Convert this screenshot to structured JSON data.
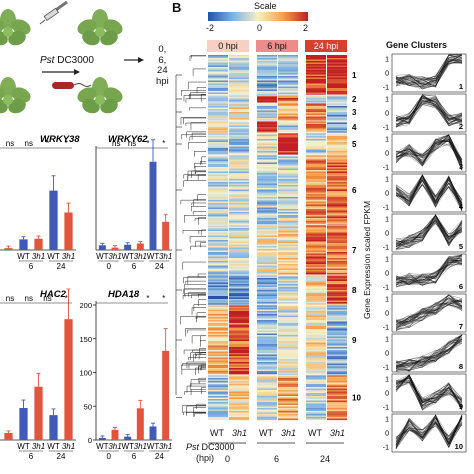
{
  "panel_b_label": "B",
  "panel_a": {
    "pathogen_prefix": "Pst",
    "pathogen_strain": "DC3000",
    "timepoints": [
      "0,",
      "6,",
      "24"
    ],
    "timepoint_unit": "hpi"
  },
  "heatmap": {
    "scale_title": "Scale",
    "scale_ticks": [
      "-2",
      "0",
      "2"
    ],
    "time_headers": [
      "0 hpi",
      "6 hpi",
      "24 hpi"
    ],
    "header_colors": [
      "#f8cfc0",
      "#ee8c8c",
      "#d6402c"
    ],
    "cluster_labels": [
      "1",
      "2",
      "3",
      "4",
      "5",
      "6",
      "7",
      "8",
      "9",
      "10"
    ],
    "genotypes": [
      "WT",
      "3h1"
    ],
    "xaxis_prefix": "Pst",
    "xaxis_strain": "DC3000",
    "xaxis_unit": "(hpi)",
    "xaxis_times": [
      "0",
      "6",
      "24"
    ]
  },
  "gene_clusters": {
    "title": "Gene Clusters",
    "ylabel": "Gene Expression scaled FPKM",
    "yticks": [
      "1",
      "0",
      "-1"
    ],
    "labels": [
      "1",
      "2",
      "3",
      "4",
      "5",
      "6",
      "7",
      "8",
      "9",
      "10"
    ]
  },
  "chart_data": [
    {
      "type": "bar",
      "title": "WRKY38",
      "categories": [
        "WT 0",
        "3h1 0",
        "WT 6",
        "3h1 6",
        "WT 24",
        "3h1 24"
      ],
      "x_tick_labels": [
        "WT",
        "3h1",
        "WT",
        "3h1"
      ],
      "x_group_labels": [
        "6",
        "24"
      ],
      "values": [
        0.4,
        0.3,
        1.7,
        1.8,
        9.5,
        6.0
      ],
      "significance": [
        "ns",
        "ns",
        "*",
        "*"
      ],
      "colors": [
        "#3f5bb5",
        "#e0553c"
      ]
    },
    {
      "type": "bar",
      "title": "WRKY62",
      "categories": [
        "WT 0",
        "3h1 0",
        "WT 6",
        "3h1 6",
        "WT 24",
        "3h1 24"
      ],
      "x_tick_labels": [
        "WT",
        "3h1",
        "WT",
        "3h1",
        "WT",
        "3h1"
      ],
      "x_group_labels": [
        "0",
        "6",
        "24"
      ],
      "values": [
        0.8,
        0.4,
        0.9,
        1.1,
        15.0,
        4.8
      ],
      "significance": [
        "ns",
        "ns",
        "*",
        "*"
      ],
      "colors": [
        "#3f5bb5",
        "#e0553c"
      ]
    },
    {
      "type": "bar",
      "title": "HAC2",
      "categories": [
        "WT 0",
        "3h1 0",
        "WT 6",
        "3h1 6",
        "WT 24",
        "3h1 24"
      ],
      "x_tick_labels": [
        "WT",
        "3h1",
        "WT",
        "3h1"
      ],
      "x_group_labels": [
        "6",
        "24"
      ],
      "values": [
        2.0,
        1.0,
        4.5,
        7.5,
        3.5,
        17.0
      ],
      "significance": [
        "ns",
        "ns",
        "ns",
        "*"
      ],
      "colors": [
        "#3f5bb5",
        "#e0553c"
      ]
    },
    {
      "type": "bar",
      "title": "HDA18",
      "yticks": [
        "200",
        "150",
        "100",
        "50",
        "0"
      ],
      "ylim": [
        0,
        200
      ],
      "categories": [
        "WT 0",
        "3h1 0",
        "WT 6",
        "3h1 6",
        "WT 24",
        "3h1 24"
      ],
      "x_tick_labels": [
        "WT",
        "3h1",
        "WT",
        "3h1",
        "WT",
        "3h1"
      ],
      "x_group_labels": [
        "0",
        "6",
        "24"
      ],
      "values": [
        3,
        15,
        5,
        47,
        20,
        132
      ],
      "significance": [
        "*",
        "*",
        "*",
        "*"
      ],
      "colors": [
        "#3f5bb5",
        "#e0553c"
      ]
    }
  ]
}
